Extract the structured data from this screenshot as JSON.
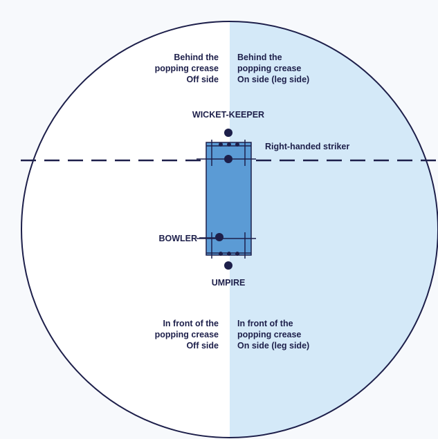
{
  "colors": {
    "outline": "#1d1f4a",
    "on_side_fill": "#d4e9f8",
    "off_side_fill": "#ffffff",
    "pitch_fill": "#5b9bd5",
    "background": "#f7f9fc"
  },
  "labels": {
    "behind_off": [
      "Behind the",
      "popping crease",
      "Off side"
    ],
    "behind_on": [
      "Behind the",
      "popping crease",
      "On side (leg side)"
    ],
    "front_off": [
      "In front of the",
      "popping crease",
      "Off side"
    ],
    "front_on": [
      "In front of the",
      "popping crease",
      "On side (leg side)"
    ],
    "wicket_keeper": "WICKET-KEEPER",
    "striker": "Right-handed striker",
    "bowler": "BOWLER",
    "umpire": "UMPIRE"
  }
}
